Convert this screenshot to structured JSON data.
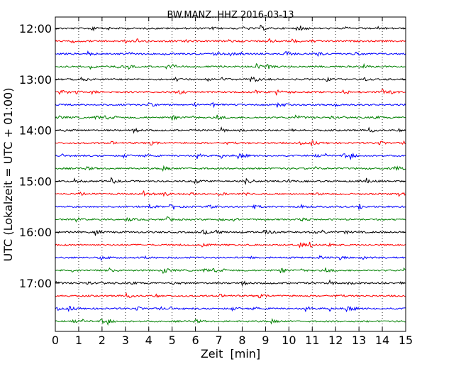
{
  "chart_data": {
    "type": "line",
    "subtype": "seismogram-dayplot",
    "title": "BW.MANZ..HHZ 2016-03-13",
    "xlabel": "Zeit  [min]",
    "ylabel": "UTC (Lokalzeit = UTC + 01:00)",
    "xlim": [
      0,
      15
    ],
    "x_ticks": [
      "0",
      "1",
      "2",
      "3",
      "4",
      "5",
      "6",
      "7",
      "8",
      "9",
      "10",
      "11",
      "12",
      "13",
      "14",
      "15"
    ],
    "y_hour_labels": [
      "12:00",
      "13:00",
      "14:00",
      "15:00",
      "16:00",
      "17:00"
    ],
    "traces_per_hour": 4,
    "trace_count": 24,
    "trace_start": "12:00",
    "trace_interval_min": 15,
    "trace_colors": [
      "#000000",
      "#ff0000",
      "#0000ff",
      "#008000"
    ],
    "grid": "vertical-dotted"
  }
}
